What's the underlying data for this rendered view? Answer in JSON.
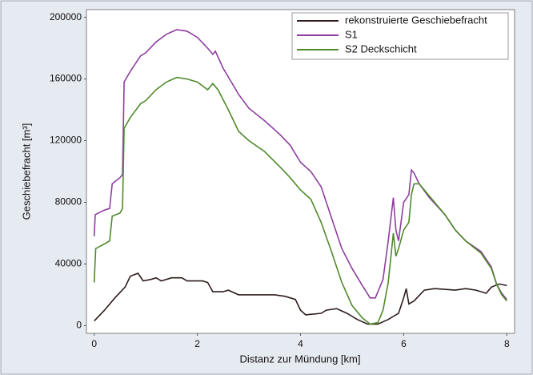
{
  "chart_data": {
    "type": "line",
    "xlabel": "Distanz zur Mündung [km]",
    "ylabel": "Geschiebefracht [m³]",
    "xlim": [
      -0.15,
      8.15
    ],
    "xticks": [
      0,
      2,
      4,
      6,
      8
    ],
    "ylim": [
      -5000,
      205000
    ],
    "yticks": [
      0,
      40000,
      80000,
      120000,
      160000,
      200000
    ],
    "grid": false,
    "legend": "upper right",
    "series": [
      {
        "name": "rekonstruierte Geschiebefracht",
        "color": "#2e1c1c",
        "x": [
          0,
          0.2,
          0.4,
          0.6,
          0.7,
          0.85,
          0.95,
          1.1,
          1.2,
          1.3,
          1.5,
          1.7,
          1.8,
          2.1,
          2.2,
          2.3,
          2.5,
          2.6,
          2.8,
          3.0,
          3.2,
          3.5,
          3.7,
          3.9,
          4.0,
          4.1,
          4.4,
          4.5,
          4.7,
          4.9,
          5.1,
          5.3,
          5.5,
          5.7,
          5.9,
          6.0,
          6.05,
          6.1,
          6.2,
          6.4,
          6.6,
          7.0,
          7.2,
          7.4,
          7.6,
          7.7,
          7.85,
          8.0
        ],
        "values": [
          3000,
          10000,
          18000,
          25000,
          32000,
          34000,
          29000,
          30000,
          31000,
          29000,
          31000,
          31000,
          29000,
          29000,
          28000,
          22000,
          22000,
          23000,
          20000,
          20000,
          20000,
          20000,
          19000,
          17000,
          10000,
          7000,
          8000,
          10000,
          11000,
          8000,
          4000,
          1000,
          1000,
          4000,
          8000,
          18000,
          24000,
          14000,
          16000,
          23000,
          24000,
          23000,
          24000,
          23000,
          21000,
          25000,
          27000,
          26000
        ]
      },
      {
        "name": "S1",
        "color": "#8e3ea0",
        "x": [
          0,
          0.02,
          0.2,
          0.3,
          0.35,
          0.5,
          0.55,
          0.58,
          0.7,
          0.9,
          1.0,
          1.2,
          1.4,
          1.6,
          1.8,
          2.0,
          2.2,
          2.3,
          2.35,
          2.5,
          2.8,
          3.0,
          3.3,
          3.6,
          3.8,
          4.0,
          4.2,
          4.4,
          4.6,
          4.8,
          5.0,
          5.2,
          5.35,
          5.45,
          5.6,
          5.7,
          5.8,
          5.85,
          5.9,
          6.0,
          6.1,
          6.15,
          6.2,
          6.3,
          6.5,
          6.8,
          7.0,
          7.2,
          7.5,
          7.7,
          7.8,
          7.9,
          8.0
        ],
        "values": [
          58000,
          72000,
          75000,
          76000,
          92000,
          96000,
          98000,
          158000,
          165000,
          175000,
          177000,
          184000,
          189000,
          192000,
          191000,
          187000,
          180000,
          176000,
          178000,
          167000,
          150000,
          141000,
          133000,
          124000,
          117000,
          106000,
          100000,
          90000,
          70000,
          50000,
          37000,
          26000,
          18000,
          18000,
          30000,
          55000,
          83000,
          62000,
          55000,
          80000,
          85000,
          101000,
          99000,
          92000,
          83000,
          72000,
          62000,
          55000,
          48000,
          38000,
          27000,
          21000,
          17000
        ]
      },
      {
        "name": "S2 Deckschicht",
        "color": "#4f8a2a",
        "x": [
          0,
          0.03,
          0.2,
          0.3,
          0.35,
          0.5,
          0.55,
          0.58,
          0.7,
          0.9,
          1.0,
          1.2,
          1.4,
          1.6,
          1.8,
          2.0,
          2.2,
          2.3,
          2.4,
          2.6,
          2.8,
          3.0,
          3.3,
          3.6,
          3.8,
          4.0,
          4.2,
          4.4,
          4.6,
          4.8,
          5.0,
          5.2,
          5.35,
          5.5,
          5.6,
          5.7,
          5.8,
          5.85,
          5.9,
          6.0,
          6.1,
          6.15,
          6.2,
          6.3,
          6.5,
          6.8,
          7.0,
          7.2,
          7.5,
          7.7,
          7.8,
          7.9,
          8.0
        ],
        "values": [
          28000,
          50000,
          53000,
          55000,
          71000,
          73000,
          76000,
          128000,
          135000,
          144000,
          146000,
          153000,
          158000,
          161000,
          160000,
          158000,
          153000,
          157000,
          153000,
          140000,
          126000,
          120000,
          113000,
          103000,
          96000,
          88000,
          82000,
          67000,
          48000,
          28000,
          13000,
          5000,
          1000,
          2000,
          10000,
          28000,
          60000,
          45000,
          50000,
          62000,
          67000,
          85000,
          92000,
          92000,
          84000,
          72000,
          62000,
          55000,
          47000,
          37000,
          27000,
          20000,
          16000
        ]
      }
    ]
  }
}
